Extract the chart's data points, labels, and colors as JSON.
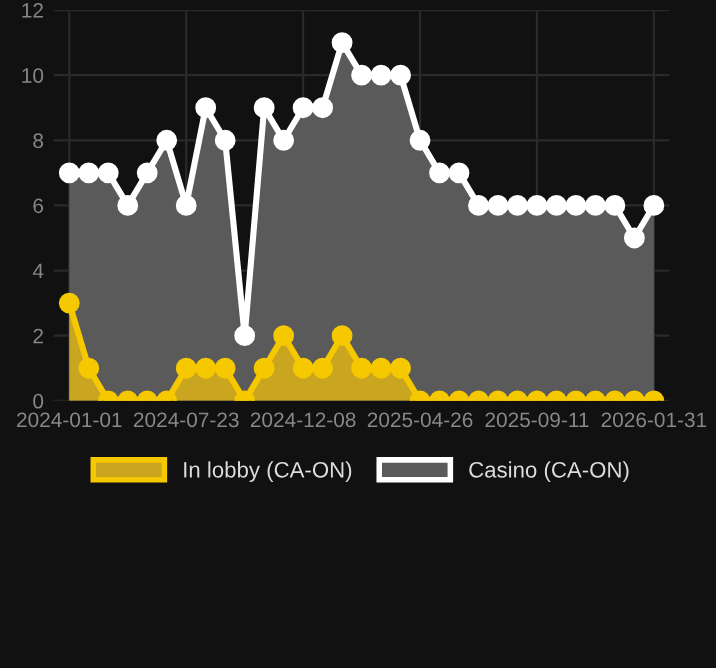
{
  "chart_data": {
    "type": "area",
    "categories": [
      "2024-01-01",
      null,
      null,
      null,
      null,
      null,
      "2024-07-23",
      null,
      null,
      null,
      null,
      null,
      "2024-12-08",
      null,
      null,
      null,
      null,
      null,
      "2025-04-26",
      null,
      null,
      null,
      null,
      null,
      "2025-09-11",
      null,
      null,
      null,
      null,
      null,
      "2026-01-31"
    ],
    "series": [
      {
        "name": "In lobby (CA-ON)",
        "color": "#f5c800",
        "values": [
          3,
          1,
          0,
          0,
          0,
          0,
          1,
          1,
          1,
          0,
          1,
          2,
          1,
          1,
          2,
          1,
          1,
          1,
          0,
          0,
          0,
          0,
          0,
          0,
          0,
          0,
          0,
          0,
          0,
          0,
          0
        ]
      },
      {
        "name": "Casino (CA-ON)",
        "color": "#ffffff",
        "values": [
          7,
          7,
          7,
          6,
          7,
          8,
          6,
          9,
          8,
          2,
          9,
          8,
          9,
          9,
          11,
          10,
          10,
          10,
          8,
          7,
          7,
          6,
          6,
          6,
          6,
          6,
          6,
          6,
          6,
          5,
          6
        ]
      }
    ],
    "ylim": [
      0,
      12
    ],
    "yticks": [
      0,
      2,
      4,
      6,
      8,
      10,
      12
    ],
    "grid": true,
    "legend": "bottom",
    "marker": "circle",
    "line_style": "solid"
  }
}
